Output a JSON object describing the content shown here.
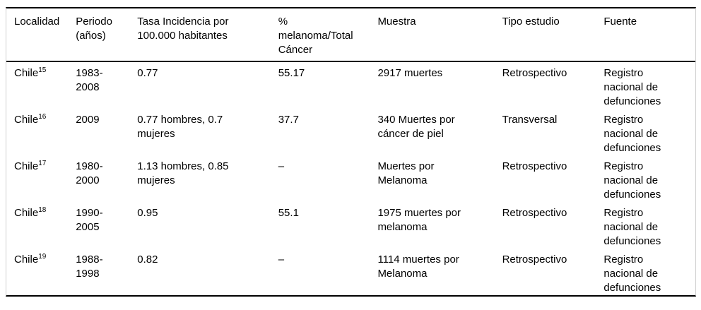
{
  "table": {
    "columns": [
      "Localidad",
      "Periodo (años)",
      "Tasa Incidencia por 100.000 habitantes",
      "% melanoma/Total Cáncer",
      "Muestra",
      "Tipo estudio",
      "Fuente"
    ],
    "rows": [
      {
        "localidad": "Chile",
        "ref": "15",
        "periodo": "1983-2008",
        "tasa_incidencia": "0.77",
        "pct_melanoma": "55.17",
        "muestra": "2917 muertes",
        "tipo_estudio": "Retrospectivo",
        "fuente": "Registro nacional de defunciones"
      },
      {
        "localidad": "Chile",
        "ref": "16",
        "periodo": "2009",
        "tasa_incidencia": "0.77 hombres, 0.7 mujeres",
        "pct_melanoma": "37.7",
        "muestra": "340 Muertes por cáncer de piel",
        "tipo_estudio": "Transversal",
        "fuente": "Registro nacional de defunciones"
      },
      {
        "localidad": "Chile",
        "ref": "17",
        "periodo": "1980-2000",
        "tasa_incidencia": "1.13 hombres, 0.85 mujeres",
        "pct_melanoma": "–",
        "muestra": "Muertes por Melanoma",
        "tipo_estudio": "Retrospectivo",
        "fuente": "Registro nacional de defunciones"
      },
      {
        "localidad": "Chile",
        "ref": "18",
        "periodo": "1990-2005",
        "tasa_incidencia": "0.95",
        "pct_melanoma": "55.1",
        "muestra": "1975 muertes por melanoma",
        "tipo_estudio": "Retrospectivo",
        "fuente": "Registro nacional de defunciones"
      },
      {
        "localidad": "Chile",
        "ref": "19",
        "periodo": "1988-1998",
        "tasa_incidencia": "0.82",
        "pct_melanoma": "–",
        "muestra": "1114 muertes por Melanoma",
        "tipo_estudio": "Retrospectivo",
        "fuente": "Registro nacional de defunciones"
      }
    ]
  },
  "colors": {
    "rule": "#000000",
    "side_border": "#d0d0d0",
    "text": "#000000",
    "background": "#ffffff"
  }
}
